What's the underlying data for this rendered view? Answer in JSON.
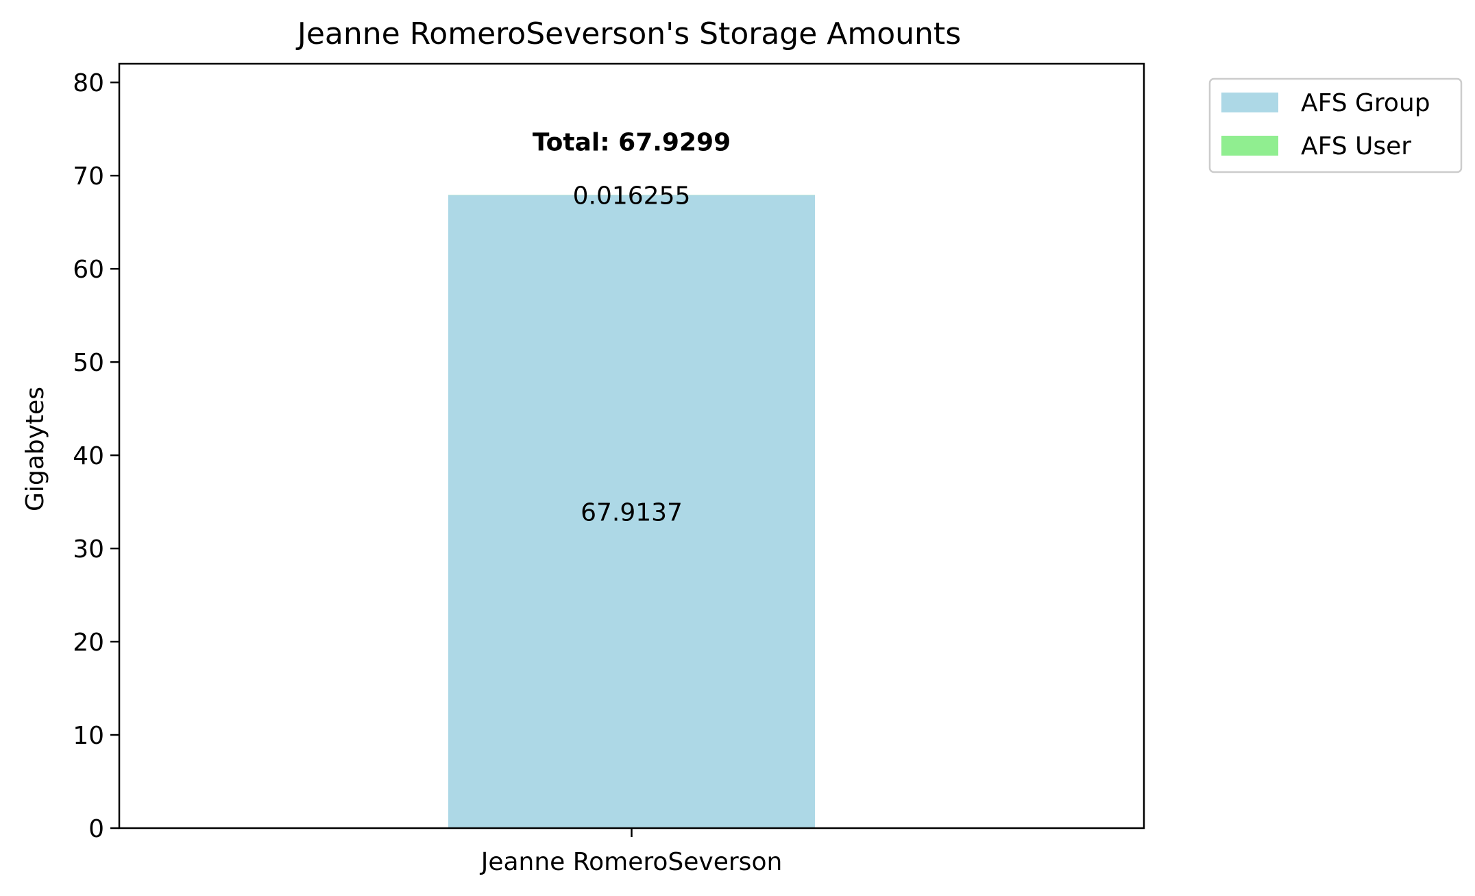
{
  "chart_data": {
    "type": "bar",
    "stacked": true,
    "title": "Jeanne RomeroSeverson's Storage Amounts",
    "xlabel": "",
    "ylabel": "Gigabytes",
    "categories": [
      "Jeanne RomeroSeverson"
    ],
    "ylim": [
      0,
      82
    ],
    "yticks": [
      0,
      10,
      20,
      30,
      40,
      50,
      60,
      70,
      80
    ],
    "series": [
      {
        "name": "AFS Group",
        "values": [
          67.9137
        ],
        "color": "#add8e6",
        "labels": [
          "67.9137"
        ]
      },
      {
        "name": "AFS User",
        "values": [
          0.016255
        ],
        "color": "#90ee90",
        "labels": [
          "0.016255"
        ]
      }
    ],
    "totals": [
      67.9299
    ],
    "total_labels": [
      "Total: 67.9299"
    ],
    "grid": false,
    "legend_position": "outside-top-right"
  }
}
